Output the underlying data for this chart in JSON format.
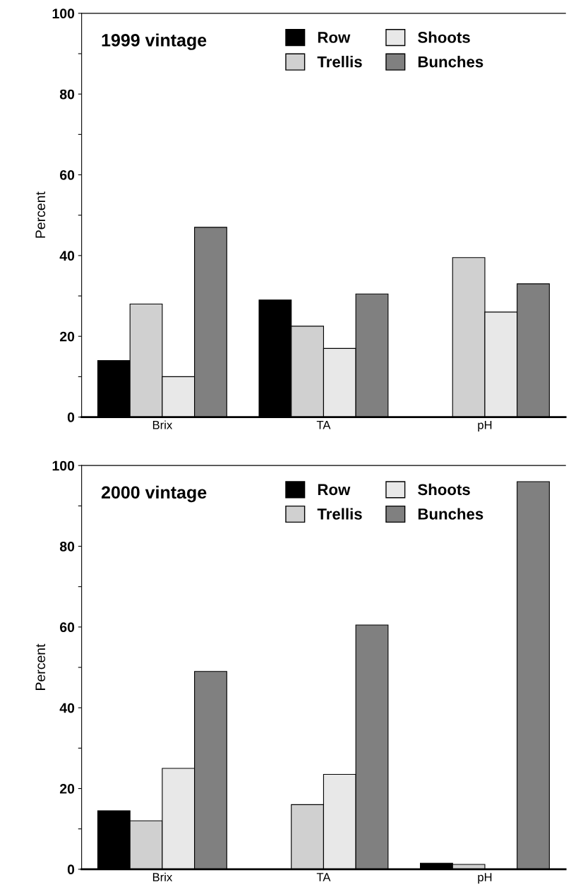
{
  "chart_data": [
    {
      "type": "bar",
      "title": "1999 vintage",
      "ylabel": "Percent",
      "categories": [
        "Brix",
        "TA",
        "pH"
      ],
      "ylim": [
        0,
        100
      ],
      "yticks": [
        0,
        {
          "value": 10,
          "label": null
        },
        20,
        {
          "value": 30,
          "label": null
        },
        40,
        {
          "value": 50,
          "label": null
        },
        60,
        {
          "value": 70,
          "label": null
        },
        80,
        {
          "value": 90,
          "label": null
        },
        100
      ],
      "legend": "top right",
      "grid": false,
      "series": [
        {
          "name": "Row",
          "color": "#000000",
          "values": [
            14,
            29,
            0
          ]
        },
        {
          "name": "Trellis",
          "color": "#d0d0d0",
          "values": [
            28,
            22.5,
            39.5
          ]
        },
        {
          "name": "Shoots",
          "color": "#e8e8e8",
          "values": [
            10,
            17,
            26
          ]
        },
        {
          "name": "Bunches",
          "color": "#808080",
          "values": [
            47,
            30.5,
            33
          ]
        }
      ]
    },
    {
      "type": "bar",
      "title": "2000 vintage",
      "ylabel": "Percent",
      "categories": [
        "Brix",
        "TA",
        "pH"
      ],
      "ylim": [
        0,
        100
      ],
      "yticks": [
        0,
        {
          "value": 10,
          "label": null
        },
        20,
        {
          "value": 30,
          "label": null
        },
        40,
        {
          "value": 50,
          "label": null
        },
        60,
        {
          "value": 70,
          "label": null
        },
        80,
        {
          "value": 90,
          "label": null
        },
        100
      ],
      "legend": "top right",
      "grid": false,
      "series": [
        {
          "name": "Row",
          "color": "#000000",
          "values": [
            14.5,
            0,
            1.5
          ]
        },
        {
          "name": "Trellis",
          "color": "#d0d0d0",
          "values": [
            12,
            16,
            1.2
          ]
        },
        {
          "name": "Shoots",
          "color": "#e8e8e8",
          "values": [
            25,
            23.5,
            0
          ]
        },
        {
          "name": "Bunches",
          "color": "#808080",
          "values": [
            49,
            60.5,
            96
          ]
        }
      ]
    }
  ]
}
